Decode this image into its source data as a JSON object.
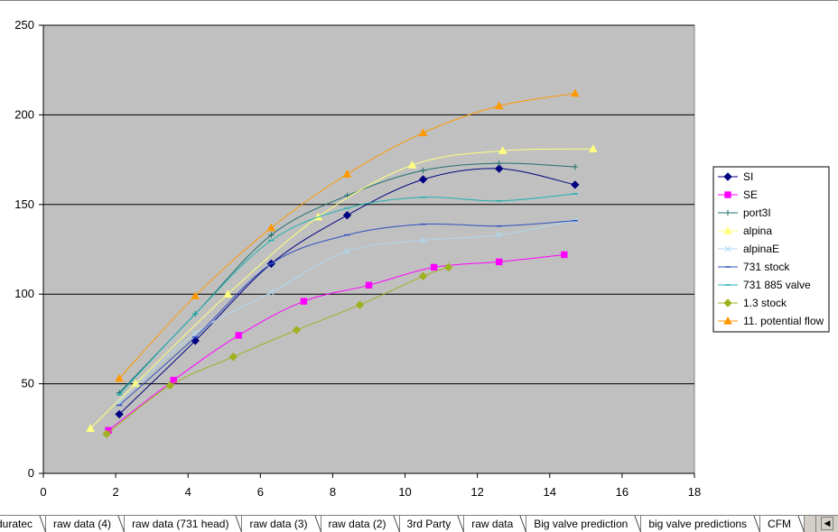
{
  "chart_data": {
    "type": "scatter",
    "xlim": [
      0,
      18
    ],
    "ylim": [
      0,
      250
    ],
    "x_ticks": [
      "0",
      "2",
      "4",
      "6",
      "8",
      "10",
      "12",
      "14",
      "16",
      "18"
    ],
    "y_ticks": [
      "0",
      "50",
      "100",
      "150",
      "200",
      "250"
    ],
    "grid": "horizontal major gridlines",
    "legend_position": "right",
    "plot_background": "#c0c0c0",
    "series": [
      {
        "name": "SI",
        "color": "#000080",
        "marker": "diamond",
        "points": [
          [
            2.1,
            33
          ],
          [
            4.2,
            74
          ],
          [
            6.3,
            117
          ],
          [
            8.4,
            144
          ],
          [
            10.5,
            164
          ],
          [
            12.6,
            170
          ],
          [
            14.7,
            161
          ]
        ]
      },
      {
        "name": "SE",
        "color": "#ff00ff",
        "marker": "square",
        "points": [
          [
            1.8,
            24
          ],
          [
            3.6,
            52
          ],
          [
            5.4,
            77
          ],
          [
            7.2,
            96
          ],
          [
            9.0,
            105
          ],
          [
            10.8,
            115
          ],
          [
            12.6,
            118
          ],
          [
            14.4,
            122
          ]
        ]
      },
      {
        "name": "port3I",
        "color": "#1f6f6f",
        "marker": "plus",
        "points": [
          [
            2.1,
            45
          ],
          [
            4.2,
            89
          ],
          [
            6.3,
            133
          ],
          [
            8.4,
            155
          ],
          [
            10.5,
            169
          ],
          [
            12.6,
            173
          ],
          [
            14.7,
            171
          ]
        ]
      },
      {
        "name": "alpina",
        "color": "#ffff80",
        "marker": "triangle",
        "points": [
          [
            1.3,
            25
          ],
          [
            2.55,
            50
          ],
          [
            5.1,
            100
          ],
          [
            7.6,
            143
          ],
          [
            10.2,
            172
          ],
          [
            12.7,
            180
          ],
          [
            15.2,
            181
          ]
        ]
      },
      {
        "name": "alpinaE",
        "color": "#b0d8f0",
        "marker": "x",
        "points": [
          [
            2.1,
            40
          ],
          [
            4.2,
            78
          ],
          [
            6.3,
            101
          ],
          [
            8.4,
            124
          ],
          [
            10.5,
            130
          ],
          [
            12.6,
            133
          ],
          [
            14.7,
            141
          ]
        ]
      },
      {
        "name": "731 stock",
        "color": "#3050c0",
        "marker": "dash",
        "points": [
          [
            2.1,
            38
          ],
          [
            4.2,
            76
          ],
          [
            6.3,
            117
          ],
          [
            8.4,
            133
          ],
          [
            10.5,
            139
          ],
          [
            12.6,
            138
          ],
          [
            14.7,
            141
          ]
        ]
      },
      {
        "name": "731 885 valve",
        "color": "#20b0b0",
        "marker": "dash",
        "points": [
          [
            2.1,
            44
          ],
          [
            4.2,
            89
          ],
          [
            6.3,
            130
          ],
          [
            8.4,
            148
          ],
          [
            10.5,
            154
          ],
          [
            12.6,
            152
          ],
          [
            14.7,
            156
          ]
        ]
      },
      {
        "name": "1.3 stock",
        "color": "#a0b020",
        "marker": "diamond",
        "points": [
          [
            1.75,
            22
          ],
          [
            3.5,
            49
          ],
          [
            5.25,
            65
          ],
          [
            7.0,
            80
          ],
          [
            8.75,
            94
          ],
          [
            10.5,
            110
          ],
          [
            11.2,
            115
          ]
        ]
      },
      {
        "name": "11. potential flow",
        "color": "#ff9900",
        "marker": "triangle",
        "points": [
          [
            2.1,
            53
          ],
          [
            4.2,
            99
          ],
          [
            6.3,
            137
          ],
          [
            8.4,
            167
          ],
          [
            10.5,
            190
          ],
          [
            12.6,
            205
          ],
          [
            14.7,
            212
          ]
        ]
      }
    ]
  },
  "sheet_tabs": [
    "duratec",
    "raw data (4)",
    "raw data (731 head)",
    "raw data (3)",
    "raw data (2)",
    "3rd Party",
    "raw data",
    "Big valve prediction",
    "big valve predictions",
    "CFM"
  ],
  "tab_scroll_icon": "triangle-left-icon"
}
